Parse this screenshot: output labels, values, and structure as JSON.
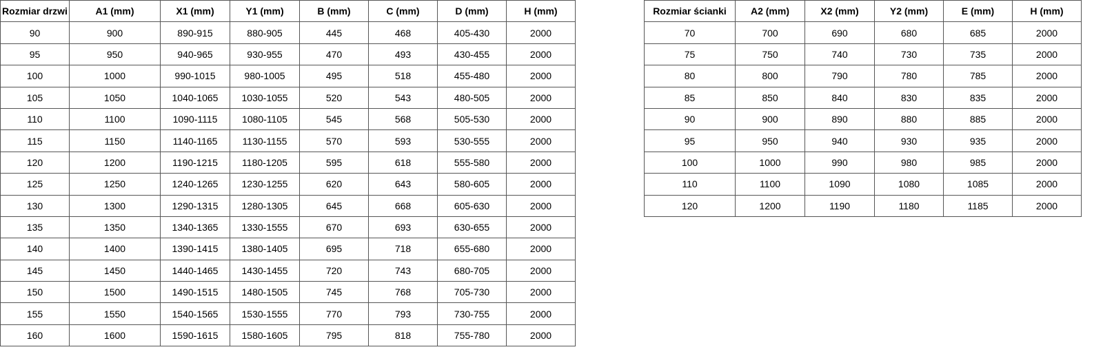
{
  "door_table": {
    "headers": [
      "Rozmiar drzwi",
      "A1 (mm)",
      "X1 (mm)",
      "Y1 (mm)",
      "B (mm)",
      "C (mm)",
      "D (mm)",
      "H (mm)"
    ],
    "rows": [
      [
        "90",
        "900",
        "890-915",
        "880-905",
        "445",
        "468",
        "405-430",
        "2000"
      ],
      [
        "95",
        "950",
        "940-965",
        "930-955",
        "470",
        "493",
        "430-455",
        "2000"
      ],
      [
        "100",
        "1000",
        "990-1015",
        "980-1005",
        "495",
        "518",
        "455-480",
        "2000"
      ],
      [
        "105",
        "1050",
        "1040-1065",
        "1030-1055",
        "520",
        "543",
        "480-505",
        "2000"
      ],
      [
        "110",
        "1100",
        "1090-1115",
        "1080-1105",
        "545",
        "568",
        "505-530",
        "2000"
      ],
      [
        "115",
        "1150",
        "1140-1165",
        "1130-1155",
        "570",
        "593",
        "530-555",
        "2000"
      ],
      [
        "120",
        "1200",
        "1190-1215",
        "1180-1205",
        "595",
        "618",
        "555-580",
        "2000"
      ],
      [
        "125",
        "1250",
        "1240-1265",
        "1230-1255",
        "620",
        "643",
        "580-605",
        "2000"
      ],
      [
        "130",
        "1300",
        "1290-1315",
        "1280-1305",
        "645",
        "668",
        "605-630",
        "2000"
      ],
      [
        "135",
        "1350",
        "1340-1365",
        "1330-1555",
        "670",
        "693",
        "630-655",
        "2000"
      ],
      [
        "140",
        "1400",
        "1390-1415",
        "1380-1405",
        "695",
        "718",
        "655-680",
        "2000"
      ],
      [
        "145",
        "1450",
        "1440-1465",
        "1430-1455",
        "720",
        "743",
        "680-705",
        "2000"
      ],
      [
        "150",
        "1500",
        "1490-1515",
        "1480-1505",
        "745",
        "768",
        "705-730",
        "2000"
      ],
      [
        "155",
        "1550",
        "1540-1565",
        "1530-1555",
        "770",
        "793",
        "730-755",
        "2000"
      ],
      [
        "160",
        "1600",
        "1590-1615",
        "1580-1605",
        "795",
        "818",
        "755-780",
        "2000"
      ]
    ]
  },
  "wall_table": {
    "headers": [
      "Rozmiar ścianki",
      "A2 (mm)",
      "X2 (mm)",
      "Y2 (mm)",
      "E (mm)",
      "H (mm)"
    ],
    "rows": [
      [
        "70",
        "700",
        "690",
        "680",
        "685",
        "2000"
      ],
      [
        "75",
        "750",
        "740",
        "730",
        "735",
        "2000"
      ],
      [
        "80",
        "800",
        "790",
        "780",
        "785",
        "2000"
      ],
      [
        "85",
        "850",
        "840",
        "830",
        "835",
        "2000"
      ],
      [
        "90",
        "900",
        "890",
        "880",
        "885",
        "2000"
      ],
      [
        "95",
        "950",
        "940",
        "930",
        "935",
        "2000"
      ],
      [
        "100",
        "1000",
        "990",
        "980",
        "985",
        "2000"
      ],
      [
        "110",
        "1100",
        "1090",
        "1080",
        "1085",
        "2000"
      ],
      [
        "120",
        "1200",
        "1190",
        "1180",
        "1185",
        "2000"
      ]
    ]
  }
}
